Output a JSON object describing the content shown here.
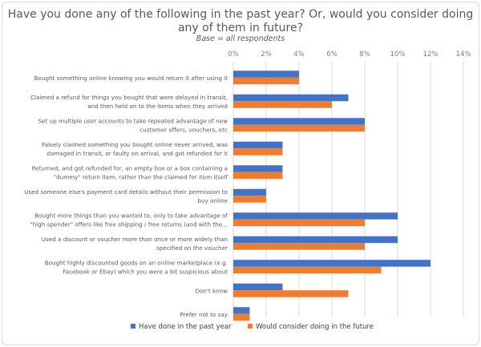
{
  "chart_data": {
    "type": "bar",
    "orientation": "horizontal",
    "title": "Have you done any of the following in the past year? Or, would you consider doing any of them in future?",
    "subtitle": "Base = all respondents",
    "xlim": [
      0,
      14
    ],
    "xticks": [
      "0%",
      "2%",
      "4%",
      "6%",
      "8%",
      "10%",
      "12%",
      "14%"
    ],
    "tick_position": "top",
    "grid": true,
    "legend_position": "bottom",
    "categories": [
      "Bought something online knowing you would return it after using it",
      "Claimed a refund for things you bought that were delayed in transit, and then held on to the items when they arrived",
      "Set up multiple user accounts to take repeated advantage of new customer offers, vouchers, etc",
      "Falsely claimed something you bought online never arrived, was damaged in transit, or faulty on arrival, and got refunded for it",
      "Returned, and got refunded for, an empty box or a box containing a \"dummy\" return item, rather than the claimed for item itself",
      "Used someone else's payment card details without their permission to buy online",
      "Bought more things than you wanted to, only to take advantage of \"high spender\" offers like free shipping / free returns (and with the...",
      "Used a discount or voucher more than once or more widely than specified on the voucher",
      "Bought highly discounted goods on an online marketplace (e.g. Facebook or Ebay) which you were a bit suspicious about",
      "Don't know",
      "Prefer not to say"
    ],
    "category_lines": [
      [
        "Bought something online knowing you would return it after using it"
      ],
      [
        "Claimed a refund for things you bought that were delayed in transit,",
        "and then held on to the items when they arrived"
      ],
      [
        "Set up multiple user accounts to take repeated advantage of new",
        "customer offers, vouchers, etc"
      ],
      [
        "Falsely claimed something you bought online never arrived, was",
        "damaged in transit, or faulty on arrival, and got refunded for it"
      ],
      [
        "Returned, and got refunded for, an empty box or a box containing a",
        "\"dummy\" return item, rather than the claimed for item itself"
      ],
      [
        "Used someone else's payment card details without their permission to",
        "buy online"
      ],
      [
        "Bought more things than you wanted to, only to take advantage of",
        "\"high spender\" offers like free shipping / free returns (and with the..."
      ],
      [
        "Used a discount or voucher more than once or more widely than",
        "specified on the voucher"
      ],
      [
        "Bought highly discounted goods on an online marketplace (e.g.",
        "Facebook or Ebay) which you were a bit suspicious about"
      ],
      [
        "Don't know"
      ],
      [
        "Prefer not to say"
      ]
    ],
    "series": [
      {
        "name": "Have done in the past year",
        "color": "#4472c4",
        "values": [
          4,
          7,
          8,
          3,
          3,
          2,
          10,
          10,
          12,
          3,
          1
        ]
      },
      {
        "name": "Would consider doing in the future",
        "color": "#ed7d31",
        "values": [
          4,
          6,
          8,
          3,
          3,
          2,
          8,
          8,
          9,
          7,
          1
        ]
      }
    ]
  }
}
